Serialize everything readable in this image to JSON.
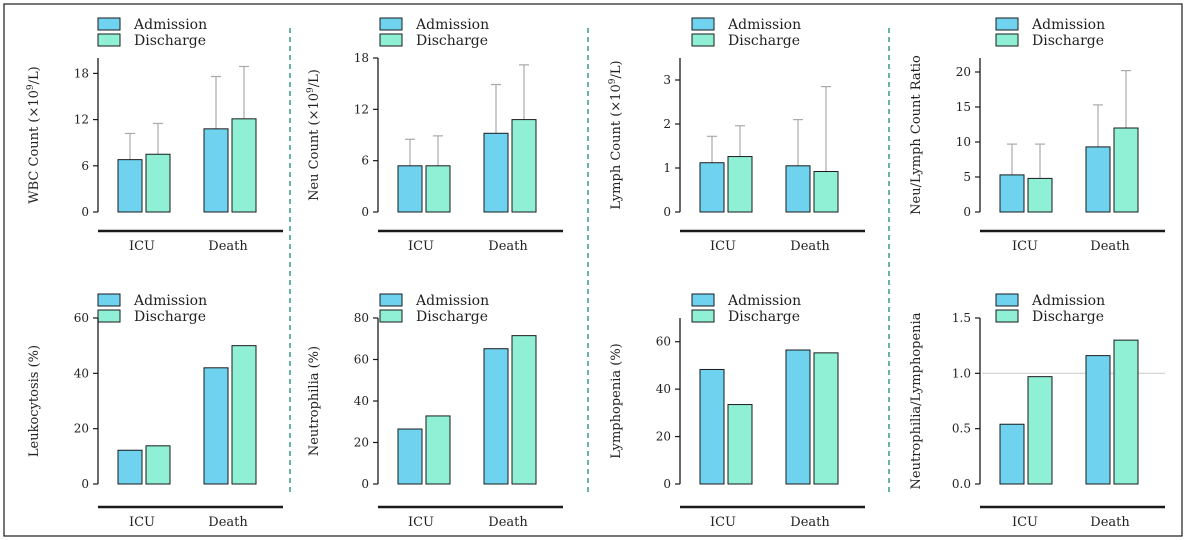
{
  "legend": {
    "admission": "Admission",
    "discharge": "Discharge"
  },
  "colors": {
    "admission": "#6fd3f0",
    "discharge": "#8ff0d6",
    "error_bar": "#aaaaaa",
    "separator": "#3a9a8a",
    "frame": "#1a1a1a",
    "axis": "#1a1a1a",
    "reference_line": "#d0d0d0"
  },
  "chart_data": [
    {
      "type": "bar",
      "ylabel_parts": [
        "WBC Count (×10",
        "9",
        "/L)"
      ],
      "categories": [
        "ICU",
        "Death"
      ],
      "series": [
        {
          "name": "Admission",
          "values": [
            6.8,
            10.8
          ],
          "error": [
            3.4,
            6.8
          ]
        },
        {
          "name": "Discharge",
          "values": [
            7.5,
            12.1
          ],
          "error": [
            4.0,
            6.8
          ]
        }
      ],
      "ylim": [
        0,
        20
      ],
      "yticks": [
        0,
        6,
        12,
        18
      ],
      "ytick_labels": [
        "0",
        "6",
        "12",
        "18"
      ]
    },
    {
      "type": "bar",
      "ylabel_parts": [
        "Neu Count (×10",
        "9",
        "/L)"
      ],
      "categories": [
        "ICU",
        "Death"
      ],
      "series": [
        {
          "name": "Admission",
          "values": [
            5.4,
            9.2
          ],
          "error": [
            3.1,
            5.7
          ]
        },
        {
          "name": "Discharge",
          "values": [
            5.4,
            10.8
          ],
          "error": [
            3.5,
            6.4
          ]
        }
      ],
      "ylim": [
        0,
        18
      ],
      "yticks": [
        0,
        6,
        12,
        18
      ],
      "ytick_labels": [
        "0",
        "6",
        "12",
        "18"
      ]
    },
    {
      "type": "bar",
      "ylabel_parts": [
        "Lymph Count (×10",
        "9",
        "/L)"
      ],
      "categories": [
        "ICU",
        "Death"
      ],
      "series": [
        {
          "name": "Admission",
          "values": [
            1.12,
            1.05
          ],
          "error": [
            0.6,
            1.05
          ]
        },
        {
          "name": "Discharge",
          "values": [
            1.26,
            0.92
          ],
          "error": [
            0.7,
            1.93
          ]
        }
      ],
      "ylim": [
        0,
        3.5
      ],
      "yticks": [
        0,
        1,
        2,
        3
      ],
      "ytick_labels": [
        "0",
        "1",
        "2",
        "3"
      ]
    },
    {
      "type": "bar",
      "ylabel_parts": [
        "Neu/Lymph Count Ratio"
      ],
      "categories": [
        "ICU",
        "Death"
      ],
      "series": [
        {
          "name": "Admission",
          "values": [
            5.3,
            9.3
          ],
          "error": [
            4.4,
            6.0
          ]
        },
        {
          "name": "Discharge",
          "values": [
            4.8,
            12.0
          ],
          "error": [
            4.9,
            8.2
          ]
        }
      ],
      "ylim": [
        0,
        22
      ],
      "yticks": [
        0,
        5,
        10,
        15,
        20
      ],
      "ytick_labels": [
        "0",
        "5",
        "10",
        "15",
        "20"
      ]
    },
    {
      "type": "bar",
      "ylabel_parts": [
        "Leukocytosis (%)"
      ],
      "categories": [
        "ICU",
        "Death"
      ],
      "series": [
        {
          "name": "Admission",
          "values": [
            12.2,
            42
          ]
        },
        {
          "name": "Discharge",
          "values": [
            13.8,
            50
          ]
        }
      ],
      "ylim": [
        0,
        60
      ],
      "yticks": [
        0,
        20,
        40,
        60
      ],
      "ytick_labels": [
        "0",
        "20",
        "40",
        "60"
      ]
    },
    {
      "type": "bar",
      "ylabel_parts": [
        "Neutrophilia (%)"
      ],
      "categories": [
        "ICU",
        "Death"
      ],
      "series": [
        {
          "name": "Admission",
          "values": [
            26.5,
            65.2
          ]
        },
        {
          "name": "Discharge",
          "values": [
            32.8,
            71.5
          ]
        }
      ],
      "ylim": [
        0,
        80
      ],
      "yticks": [
        0,
        20,
        40,
        60,
        80
      ],
      "ytick_labels": [
        "0",
        "20",
        "40",
        "60",
        "80"
      ]
    },
    {
      "type": "bar",
      "ylabel_parts": [
        "Lymphopenia (%)"
      ],
      "categories": [
        "ICU",
        "Death"
      ],
      "series": [
        {
          "name": "Admission",
          "values": [
            48.3,
            56.5
          ]
        },
        {
          "name": "Discharge",
          "values": [
            33.5,
            55.3
          ]
        }
      ],
      "ylim": [
        0,
        70
      ],
      "yticks": [
        0,
        20,
        40,
        60
      ],
      "ytick_labels": [
        "0",
        "20",
        "40",
        "60"
      ]
    },
    {
      "type": "bar",
      "ylabel_parts": [
        "Neutrophilia/Lymphopenia"
      ],
      "categories": [
        "ICU",
        "Death"
      ],
      "series": [
        {
          "name": "Admission",
          "values": [
            0.54,
            1.16
          ]
        },
        {
          "name": "Discharge",
          "values": [
            0.97,
            1.3
          ]
        }
      ],
      "ylim": [
        0,
        1.5
      ],
      "yticks": [
        0,
        0.5,
        1.0,
        1.5
      ],
      "ytick_labels": [
        "0.0",
        "0.5",
        "1.0",
        "1.5"
      ],
      "reference_line": 1.0
    }
  ]
}
